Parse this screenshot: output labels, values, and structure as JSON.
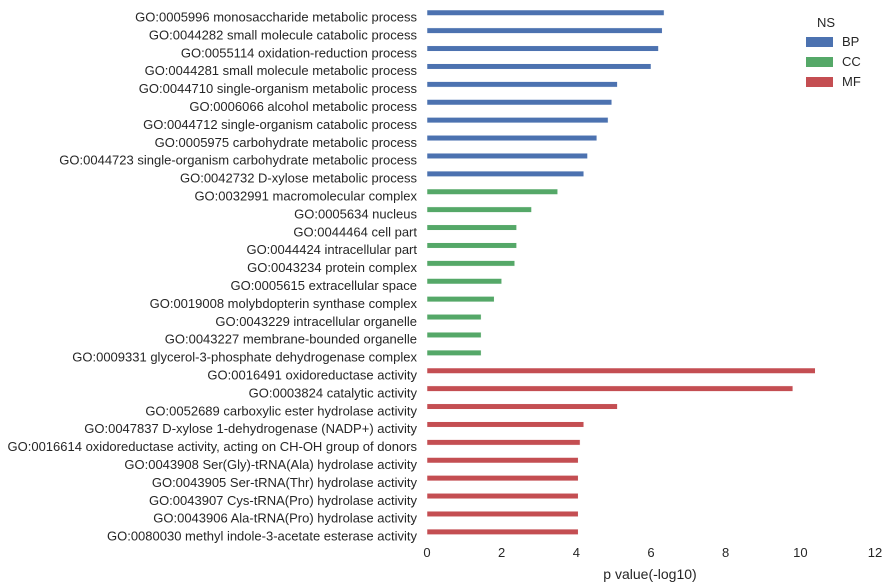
{
  "chart_data": {
    "type": "bar",
    "orientation": "horizontal",
    "xlabel": "p value(-log10)",
    "ylabel": "",
    "xlim": [
      0,
      12
    ],
    "xticks": [
      "0",
      "2",
      "4",
      "6",
      "8",
      "10",
      "12"
    ],
    "grid": false,
    "legend": {
      "title": "NS",
      "placement": "top-right",
      "entries": [
        {
          "name": "BP",
          "color": "#4c72b0"
        },
        {
          "name": "CC",
          "color": "#55a868"
        },
        {
          "name": "MF",
          "color": "#c44e52"
        }
      ]
    },
    "bars": [
      {
        "label": "GO:0005996 monosaccharide metabolic process",
        "value": 6.35,
        "ns": "BP"
      },
      {
        "label": "GO:0044282 small molecule catabolic process",
        "value": 6.3,
        "ns": "BP"
      },
      {
        "label": "GO:0055114 oxidation-reduction process",
        "value": 6.2,
        "ns": "BP"
      },
      {
        "label": "GO:0044281 small molecule metabolic process",
        "value": 6.0,
        "ns": "BP"
      },
      {
        "label": "GO:0044710 single-organism metabolic process",
        "value": 5.1,
        "ns": "BP"
      },
      {
        "label": "GO:0006066 alcohol metabolic process",
        "value": 4.95,
        "ns": "BP"
      },
      {
        "label": "GO:0044712 single-organism catabolic process",
        "value": 4.85,
        "ns": "BP"
      },
      {
        "label": "GO:0005975 carbohydrate metabolic process",
        "value": 4.55,
        "ns": "BP"
      },
      {
        "label": "GO:0044723 single-organism carbohydrate metabolic process",
        "value": 4.3,
        "ns": "BP"
      },
      {
        "label": "GO:0042732 D-xylose metabolic process",
        "value": 4.2,
        "ns": "BP"
      },
      {
        "label": "GO:0032991 macromolecular complex",
        "value": 3.5,
        "ns": "CC"
      },
      {
        "label": "GO:0005634 nucleus",
        "value": 2.8,
        "ns": "CC"
      },
      {
        "label": "GO:0044464 cell part",
        "value": 2.4,
        "ns": "CC"
      },
      {
        "label": "GO:0044424 intracellular part",
        "value": 2.4,
        "ns": "CC"
      },
      {
        "label": "GO:0043234 protein complex",
        "value": 2.35,
        "ns": "CC"
      },
      {
        "label": "GO:0005615 extracellular space",
        "value": 2.0,
        "ns": "CC"
      },
      {
        "label": "GO:0019008 molybdopterin synthase complex",
        "value": 1.8,
        "ns": "CC"
      },
      {
        "label": "GO:0043229 intracellular organelle",
        "value": 1.45,
        "ns": "CC"
      },
      {
        "label": "GO:0043227 membrane-bounded organelle",
        "value": 1.45,
        "ns": "CC"
      },
      {
        "label": "GO:0009331 glycerol-3-phosphate dehydrogenase complex",
        "value": 1.45,
        "ns": "CC"
      },
      {
        "label": "GO:0016491 oxidoreductase activity",
        "value": 10.4,
        "ns": "MF"
      },
      {
        "label": "GO:0003824 catalytic activity",
        "value": 9.8,
        "ns": "MF"
      },
      {
        "label": "GO:0052689 carboxylic ester hydrolase activity",
        "value": 5.1,
        "ns": "MF"
      },
      {
        "label": "GO:0047837 D-xylose 1-dehydrogenase (NADP+) activity",
        "value": 4.2,
        "ns": "MF"
      },
      {
        "label": "GO:0016614 oxidoreductase activity, acting on CH-OH group of donors",
        "value": 4.1,
        "ns": "MF"
      },
      {
        "label": "GO:0043908 Ser(Gly)-tRNA(Ala) hydrolase activity",
        "value": 4.05,
        "ns": "MF"
      },
      {
        "label": "GO:0043905 Ser-tRNA(Thr) hydrolase activity",
        "value": 4.05,
        "ns": "MF"
      },
      {
        "label": "GO:0043907 Cys-tRNA(Pro) hydrolase activity",
        "value": 4.05,
        "ns": "MF"
      },
      {
        "label": "GO:0043906 Ala-tRNA(Pro) hydrolase activity",
        "value": 4.05,
        "ns": "MF"
      },
      {
        "label": "GO:0080030 methyl indole-3-acetate esterase activity",
        "value": 4.05,
        "ns": "MF"
      }
    ]
  }
}
